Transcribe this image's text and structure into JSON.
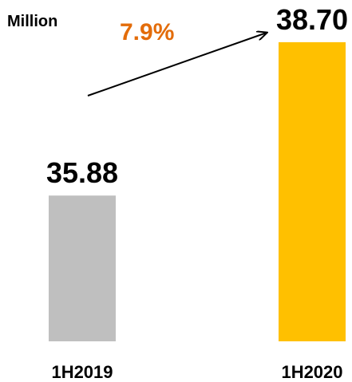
{
  "chart_data": {
    "type": "bar",
    "unit_label": "Million",
    "categories": [
      "1H2019",
      "1H2020"
    ],
    "values": [
      35.88,
      38.7
    ],
    "value_labels": [
      "35.88",
      "38.70"
    ],
    "bar_colors": [
      "#bfbfbf",
      "#ffc000"
    ],
    "growth_label": "7.9%",
    "growth_color": "#e36c0a",
    "title": "",
    "xlabel": "",
    "ylabel": "",
    "grid": false,
    "legend": "none"
  }
}
